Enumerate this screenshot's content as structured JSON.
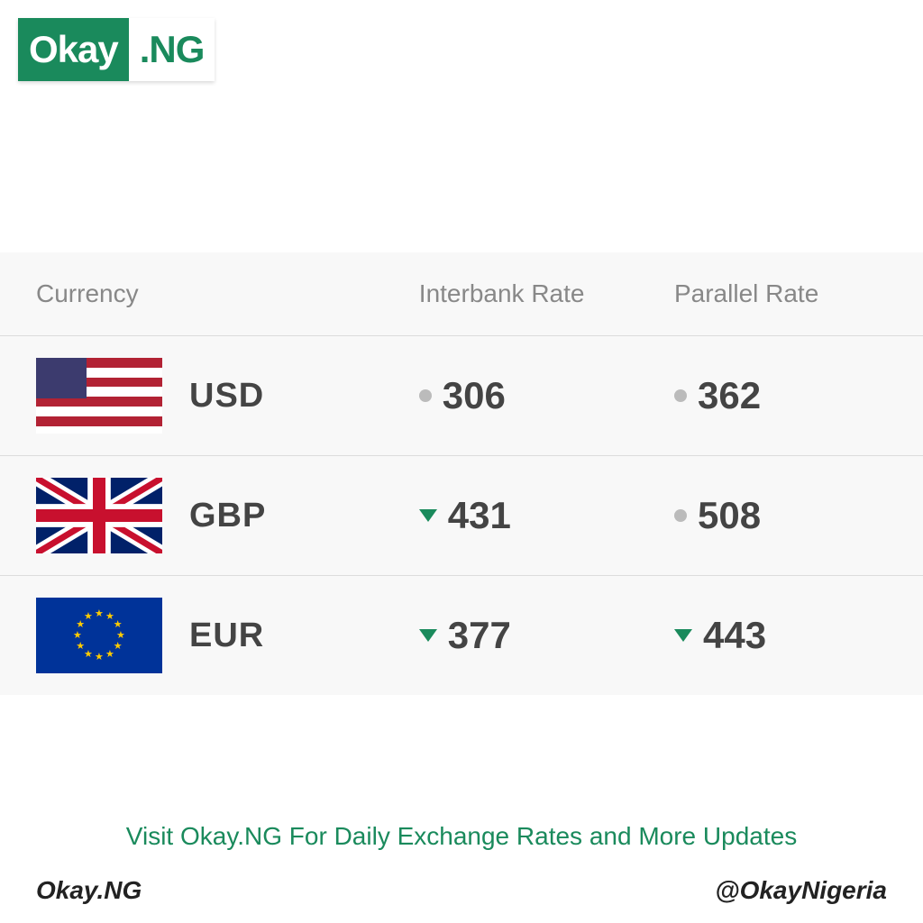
{
  "logo": {
    "left": "Okay",
    "right": ".NG"
  },
  "table": {
    "headers": {
      "currency": "Currency",
      "interbank": "Interbank Rate",
      "parallel": "Parallel Rate"
    },
    "rows": [
      {
        "code": "USD",
        "flag": "us",
        "interbank": {
          "value": "306",
          "indicator": "dot"
        },
        "parallel": {
          "value": "362",
          "indicator": "dot"
        }
      },
      {
        "code": "GBP",
        "flag": "uk",
        "interbank": {
          "value": "431",
          "indicator": "down"
        },
        "parallel": {
          "value": "508",
          "indicator": "dot"
        }
      },
      {
        "code": "EUR",
        "flag": "eu",
        "interbank": {
          "value": "377",
          "indicator": "down"
        },
        "parallel": {
          "value": "443",
          "indicator": "down"
        }
      }
    ]
  },
  "promo": "Visit Okay.NG For Daily Exchange Rates and More Updates",
  "footer": {
    "left": "Okay.NG",
    "right": "@OkayNigeria"
  },
  "colors": {
    "brand_green": "#1a8a5c",
    "text_gray": "#888888",
    "value_gray": "#444444",
    "dot_gray": "#bbbbbb",
    "border": "#dcdcdc",
    "bg": "#f8f8f8"
  }
}
